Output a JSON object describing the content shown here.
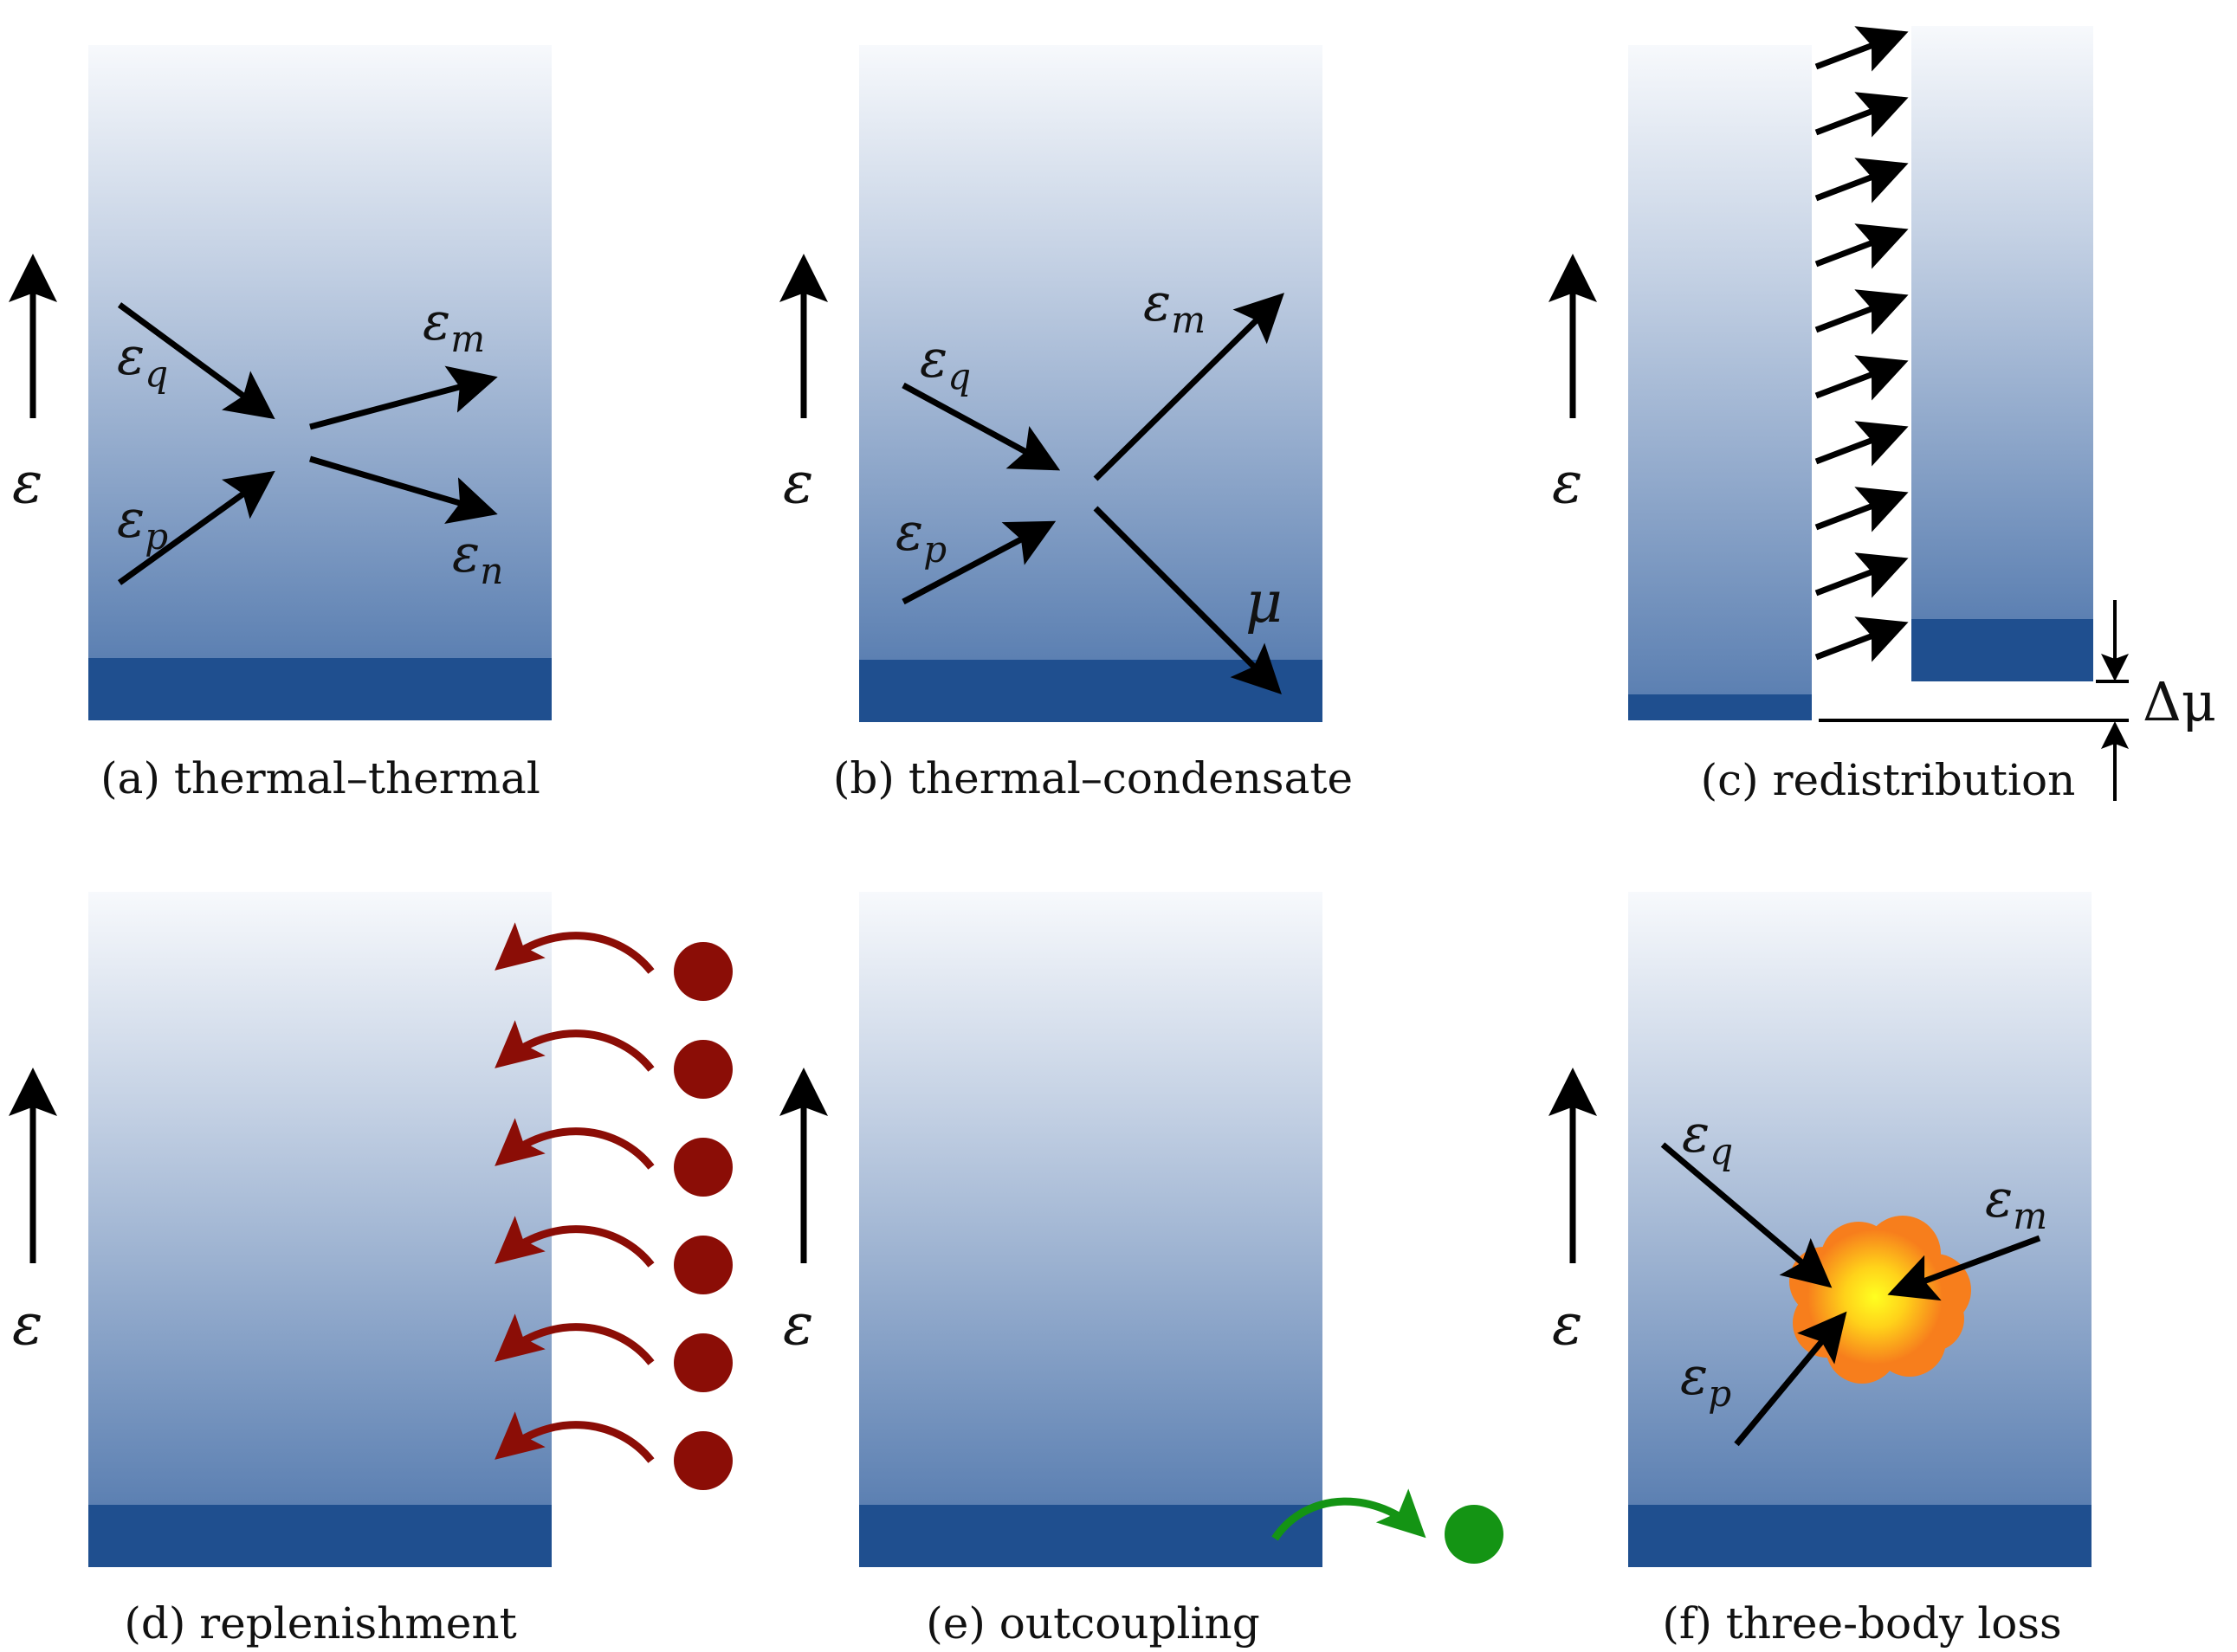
{
  "energy_symbol": "ε",
  "panels": {
    "a": {
      "caption": "(a) thermal–thermal",
      "labels": {
        "eq": "ε",
        "eq_sub": "q",
        "ep": "ε",
        "ep_sub": "p",
        "em": "ε",
        "em_sub": "m",
        "en": "ε",
        "en_sub": "n"
      }
    },
    "b": {
      "caption": "(b) thermal–condensate",
      "labels": {
        "eq": "ε",
        "eq_sub": "q",
        "ep": "ε",
        "ep_sub": "p",
        "em": "ε",
        "em_sub": "m",
        "mu": "μ"
      }
    },
    "c": {
      "caption": "(c) redistribution",
      "labels": {
        "delta_mu": "Δμ"
      }
    },
    "d": {
      "caption": "(d) replenishment"
    },
    "e": {
      "caption": "(e) outcoupling"
    },
    "f": {
      "caption": "(f) three-body loss",
      "labels": {
        "eq": "ε",
        "eq_sub": "q",
        "ep": "ε",
        "ep_sub": "p",
        "em": "ε",
        "em_sub": "m"
      }
    }
  },
  "colors": {
    "condensate": "#1f4f8f",
    "gradient_top": "#f7f9fc",
    "gradient_bottom": "#5c80b2",
    "replenish": "#8b0d06",
    "outcouple": "#149414",
    "explosion_outer": "#f77e1c",
    "explosion_inner": "#ffff20"
  }
}
